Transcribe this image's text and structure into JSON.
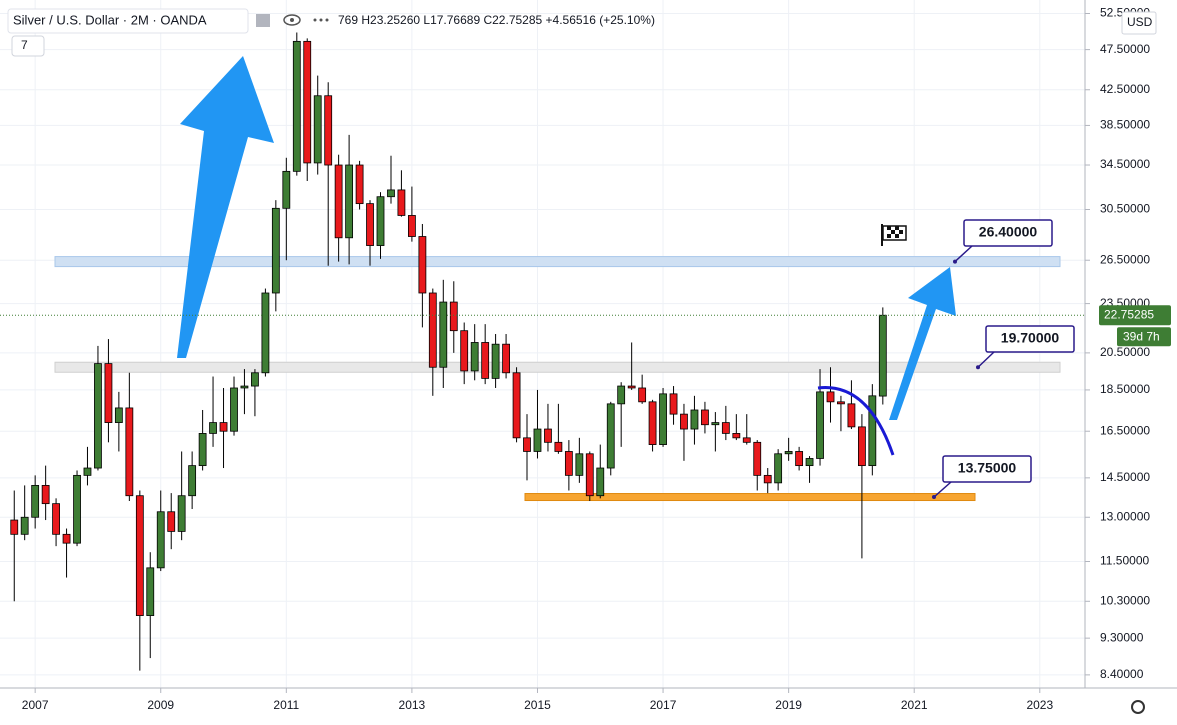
{
  "chart_data": {
    "type": "candlestick",
    "title": "Silver / U.S. Dollar · 2M · OANDA",
    "legend_text": "769 H23.25260 L17.76689 C22.75285 +4.56516 (+25.10%)",
    "indicator_count": 7,
    "currency": "USD",
    "countdown": "39d 7h",
    "log_scale": true,
    "grid": true,
    "up_color": "#3e7d34",
    "down_color": "#e8191c",
    "x": [
      2006.667,
      2006.833,
      2007,
      2007.167,
      2007.333,
      2007.5,
      2007.667,
      2007.833,
      2008,
      2008.167,
      2008.333,
      2008.5,
      2008.667,
      2008.833,
      2009,
      2009.167,
      2009.333,
      2009.5,
      2009.667,
      2009.833,
      2010,
      2010.167,
      2010.333,
      2010.5,
      2010.667,
      2010.833,
      2011,
      2011.167,
      2011.333,
      2011.5,
      2011.667,
      2011.833,
      2012,
      2012.167,
      2012.333,
      2012.5,
      2012.667,
      2012.833,
      2013,
      2013.167,
      2013.333,
      2013.5,
      2013.667,
      2013.833,
      2014,
      2014.167,
      2014.333,
      2014.5,
      2014.667,
      2014.833,
      2015,
      2015.167,
      2015.333,
      2015.5,
      2015.667,
      2015.833,
      2016,
      2016.167,
      2016.333,
      2016.5,
      2016.667,
      2016.833,
      2017,
      2017.167,
      2017.333,
      2017.5,
      2017.667,
      2017.833,
      2018,
      2018.167,
      2018.333,
      2018.5,
      2018.667,
      2018.833,
      2019,
      2019.167,
      2019.333,
      2019.5,
      2019.667,
      2019.833,
      2020,
      2020.167,
      2020.333,
      2020.5
    ],
    "open": [
      12.9,
      12.4,
      13.0,
      14.2,
      13.5,
      12.4,
      12.1,
      14.6,
      14.9,
      19.9,
      16.9,
      17.6,
      13.8,
      9.9,
      11.3,
      13.2,
      12.5,
      13.8,
      15.0,
      16.4,
      16.9,
      16.5,
      18.6,
      18.7,
      19.4,
      24.2,
      30.6,
      33.9,
      48.6,
      34.7,
      41.8,
      34.5,
      28.2,
      34.5,
      31.0,
      27.6,
      31.6,
      32.2,
      30.0,
      28.3,
      24.2,
      19.7,
      23.6,
      21.8,
      19.5,
      21.1,
      19.1,
      21.0,
      19.4,
      16.2,
      15.6,
      16.6,
      16.0,
      15.6,
      14.6,
      15.5,
      13.8,
      14.9,
      17.8,
      18.7,
      18.6,
      17.9,
      15.9,
      18.3,
      17.3,
      16.6,
      17.5,
      16.8,
      16.9,
      16.4,
      16.2,
      16.0,
      14.6,
      14.3,
      15.5,
      15.6,
      15.0,
      15.3,
      18.4,
      17.9,
      17.8,
      16.7,
      15.0,
      18.18769
    ],
    "high": [
      14.0,
      14.2,
      14.6,
      15.0,
      13.7,
      12.6,
      14.8,
      15.8,
      20.9,
      21.3,
      18.4,
      19.4,
      14.0,
      11.8,
      14.0,
      13.9,
      15.6,
      15.6,
      17.5,
      19.2,
      18.6,
      19.2,
      19.6,
      19.6,
      24.5,
      31.3,
      35.2,
      49.8,
      49.0,
      44.2,
      43.4,
      35.5,
      37.5,
      34.9,
      31.3,
      32.0,
      35.4,
      34.0,
      32.5,
      29.3,
      24.5,
      25.1,
      25.0,
      22.3,
      22.2,
      22.2,
      21.6,
      21.6,
      19.7,
      17.3,
      18.5,
      17.8,
      17.8,
      16.1,
      16.2,
      15.6,
      15.9,
      17.9,
      18.9,
      21.1,
      19.3,
      18.0,
      18.6,
      18.7,
      17.8,
      18.2,
      17.9,
      17.4,
      17.7,
      17.3,
      17.3,
      16.1,
      14.9,
      15.7,
      16.2,
      15.8,
      15.4,
      19.6,
      19.7,
      18.2,
      19.0,
      17.3,
      18.8,
      23.2526
    ],
    "low": [
      10.3,
      12.2,
      12.6,
      12.9,
      12.0,
      11.0,
      12.0,
      14.2,
      14.8,
      16.0,
      15.6,
      13.6,
      8.5,
      8.8,
      11.2,
      11.9,
      12.2,
      13.3,
      14.8,
      15.8,
      14.9,
      16.3,
      17.3,
      17.2,
      19.2,
      23.0,
      26.5,
      33.5,
      33.0,
      33.6,
      26.1,
      26.4,
      26.2,
      30.5,
      26.1,
      26.6,
      31.0,
      29.9,
      27.9,
      22.0,
      18.2,
      18.6,
      20.5,
      18.8,
      19.0,
      18.8,
      18.6,
      19.1,
      16.0,
      14.4,
      15.3,
      15.6,
      15.5,
      14.0,
      14.3,
      13.6,
      13.7,
      14.6,
      15.8,
      18.5,
      17.8,
      15.6,
      15.8,
      16.8,
      15.2,
      15.9,
      16.4,
      15.6,
      16.1,
      16.1,
      15.9,
      14.0,
      13.9,
      14.0,
      15.2,
      14.8,
      14.3,
      15.0,
      16.9,
      16.5,
      16.6,
      11.6,
      14.6,
      17.76689
    ],
    "close": [
      12.4,
      13.0,
      14.2,
      13.5,
      12.4,
      12.1,
      14.6,
      14.9,
      19.9,
      16.9,
      17.6,
      13.8,
      9.9,
      11.3,
      13.2,
      12.5,
      13.8,
      15.0,
      16.4,
      16.9,
      16.5,
      18.6,
      18.7,
      19.4,
      24.2,
      30.6,
      33.9,
      48.6,
      34.7,
      41.8,
      34.5,
      28.2,
      34.5,
      31.0,
      27.6,
      31.6,
      32.2,
      30.0,
      28.3,
      24.2,
      19.7,
      23.6,
      21.8,
      19.5,
      21.1,
      19.1,
      21.0,
      19.4,
      16.2,
      15.6,
      16.6,
      16.0,
      15.6,
      14.6,
      15.5,
      13.8,
      14.9,
      17.8,
      18.7,
      18.6,
      17.9,
      15.9,
      18.3,
      17.3,
      16.6,
      17.5,
      16.8,
      16.9,
      16.4,
      16.2,
      16.0,
      14.6,
      14.3,
      15.5,
      15.6,
      15.0,
      15.3,
      18.4,
      17.9,
      17.8,
      16.7,
      15.0,
      18.2,
      22.75285
    ],
    "xlim": [
      2006.44,
      2023.72
    ],
    "xticks": [
      2007,
      2009,
      2011,
      2013,
      2015,
      2017,
      2019,
      2021,
      2023
    ],
    "ylim": [
      8.1,
      54.5
    ],
    "yticks": [
      {
        "value": 8.4,
        "label": "8.40000"
      },
      {
        "value": 9.3,
        "label": "9.30000"
      },
      {
        "value": 10.3,
        "label": "10.30000"
      },
      {
        "value": 11.5,
        "label": "11.50000"
      },
      {
        "value": 13,
        "label": "13.00000"
      },
      {
        "value": 14.5,
        "label": "14.50000"
      },
      {
        "value": 16.5,
        "label": "16.50000"
      },
      {
        "value": 18.5,
        "label": "18.50000"
      },
      {
        "value": 20.5,
        "label": "20.50000"
      },
      {
        "value": 23.5,
        "label": "23.50000"
      },
      {
        "value": 26.5,
        "label": "26.50000"
      },
      {
        "value": 30.5,
        "label": "30.50000"
      },
      {
        "value": 34.5,
        "label": "34.50000"
      },
      {
        "value": 38.5,
        "label": "38.50000"
      },
      {
        "value": 42.5,
        "label": "42.50000"
      },
      {
        "value": 47.5,
        "label": "47.50000"
      },
      {
        "value": 52.5,
        "label": "52.50000"
      }
    ],
    "levels": [
      {
        "value": 26.4,
        "label": "26.40000",
        "color": "#cfe0f3"
      },
      {
        "value": 19.7,
        "label": "19.70000",
        "color": "#e8e8e8"
      },
      {
        "value": 13.75,
        "label": "13.75000",
        "color": "#f7a531"
      }
    ]
  }
}
